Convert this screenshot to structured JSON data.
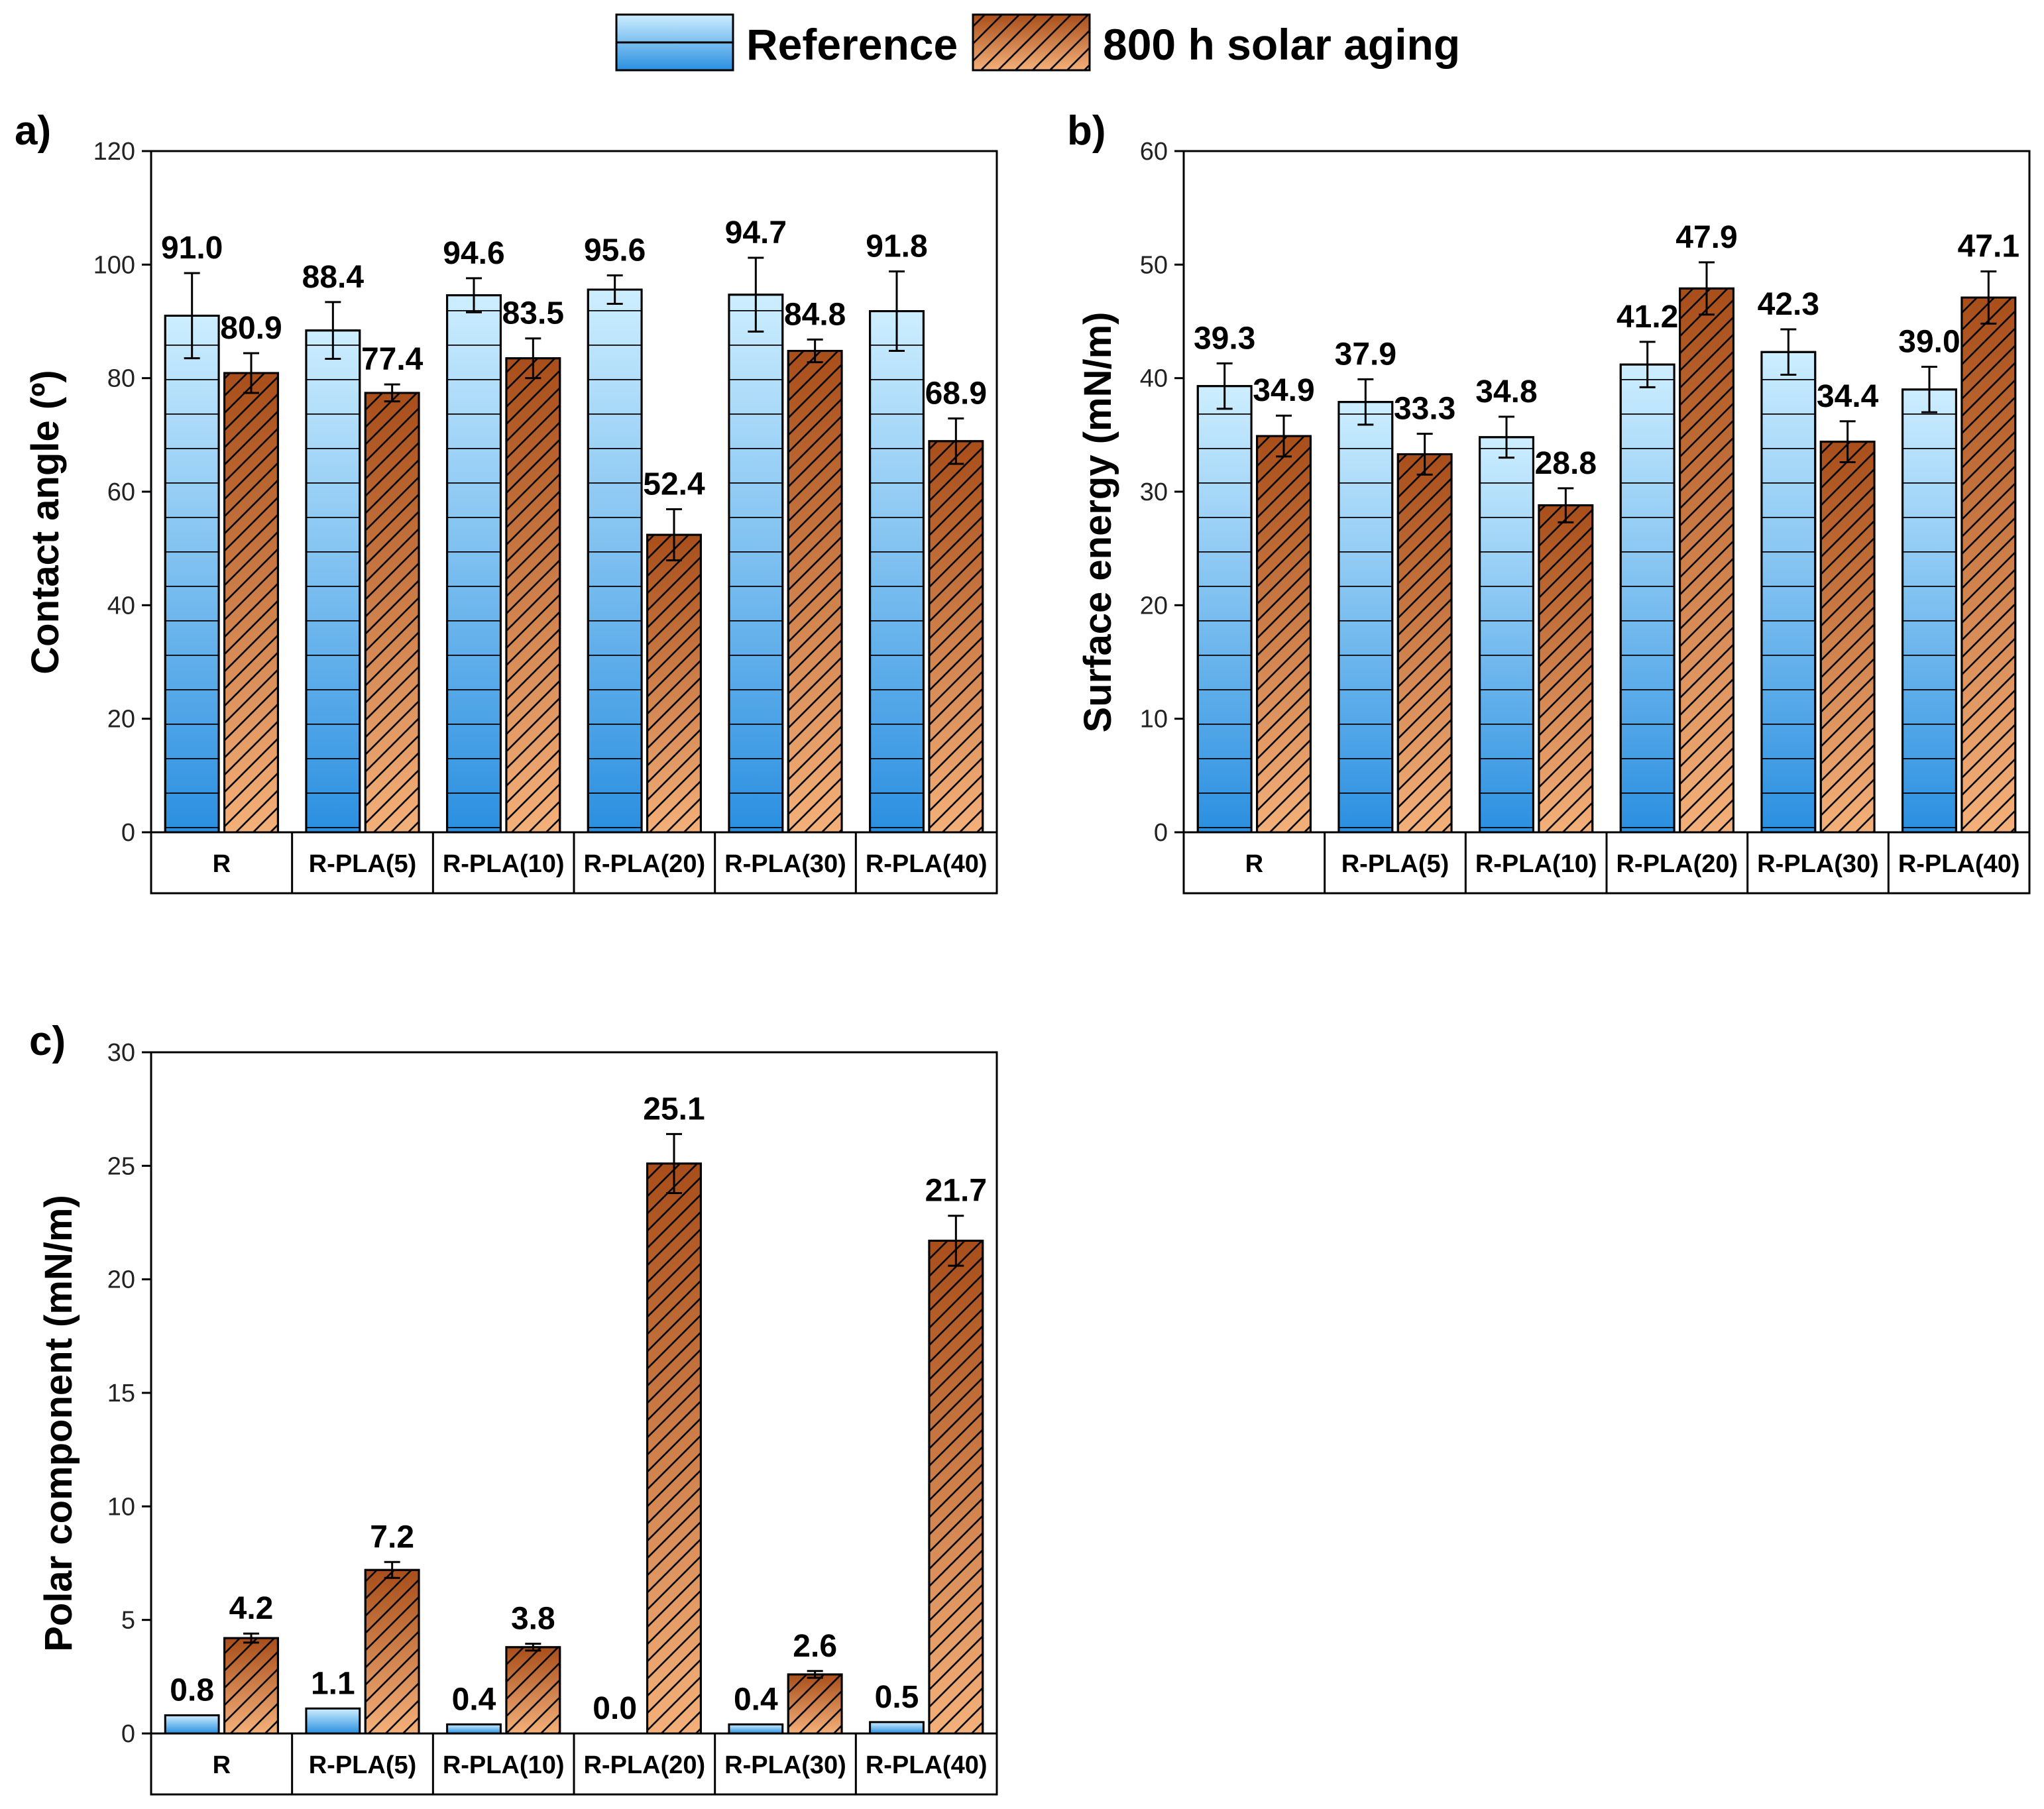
{
  "legend": [
    {
      "name": "Reference",
      "style": "blue-gradient-lines"
    },
    {
      "name": "800 h solar aging",
      "style": "orange-hatch"
    }
  ],
  "colors": {
    "reference_top": "#cdeeff",
    "reference_bottom": "#2a8fe0",
    "aged_top": "#f4b07a",
    "aged_bottom": "#a84e1a",
    "outline": "#000000"
  },
  "chart_data": [
    {
      "panel": "a)",
      "type": "bar",
      "ylabel": "Contact angle (º)",
      "ylim": [
        0,
        120
      ],
      "yticks": [
        0,
        20,
        40,
        60,
        80,
        100,
        120
      ],
      "categories": [
        "R",
        "R-PLA(5)",
        "R-PLA(10)",
        "R-PLA(20)",
        "R-PLA(30)",
        "R-PLA(40)"
      ],
      "series": [
        {
          "name": "Reference",
          "values": [
            91.0,
            88.4,
            94.6,
            95.6,
            94.7,
            91.8
          ],
          "labels": [
            "91.0",
            "88.4",
            "94.6",
            "95.6",
            "94.7",
            "91.8"
          ],
          "errors": [
            7.5,
            5.0,
            3.0,
            2.5,
            6.5,
            7.0
          ]
        },
        {
          "name": "800 h solar aging",
          "values": [
            80.9,
            77.4,
            83.5,
            52.4,
            84.8,
            68.9
          ],
          "labels": [
            "80.9",
            "77.4",
            "83.5",
            "52.4",
            "84.8",
            "68.9"
          ],
          "errors": [
            3.5,
            1.5,
            3.5,
            4.5,
            2.0,
            4.0
          ]
        }
      ]
    },
    {
      "panel": "b)",
      "type": "bar",
      "ylabel": "Surface energy (mN/m)",
      "ylim": [
        0,
        60
      ],
      "yticks": [
        0,
        10,
        20,
        30,
        40,
        50,
        60
      ],
      "categories": [
        "R",
        "R-PLA(5)",
        "R-PLA(10)",
        "R-PLA(20)",
        "R-PLA(30)",
        "R-PLA(40)"
      ],
      "series": [
        {
          "name": "Reference",
          "values": [
            39.3,
            37.9,
            34.8,
            41.2,
            42.3,
            39.0
          ],
          "labels": [
            "39.3",
            "37.9",
            "34.8",
            "41.2",
            "42.3",
            "39.0"
          ],
          "errors": [
            2.0,
            2.0,
            1.8,
            2.0,
            2.0,
            2.0
          ]
        },
        {
          "name": "800 h solar aging",
          "values": [
            34.9,
            33.3,
            28.8,
            47.9,
            34.4,
            47.1
          ],
          "labels": [
            "34.9",
            "33.3",
            "28.8",
            "47.9",
            "34.4",
            "47.1"
          ],
          "errors": [
            1.8,
            1.8,
            1.5,
            2.3,
            1.8,
            2.3
          ]
        }
      ]
    },
    {
      "panel": "c)",
      "type": "bar",
      "ylabel": "Polar component (mN/m)",
      "ylim": [
        0,
        30
      ],
      "yticks": [
        0,
        5,
        10,
        15,
        20,
        25,
        30
      ],
      "categories": [
        "R",
        "R-PLA(5)",
        "R-PLA(10)",
        "R-PLA(20)",
        "R-PLA(30)",
        "R-PLA(40)"
      ],
      "series": [
        {
          "name": "Reference",
          "values": [
            0.8,
            1.1,
            0.4,
            0.0,
            0.4,
            0.5
          ],
          "labels": [
            "0.8",
            "1.1",
            "0.4",
            "0.0",
            "0.4",
            "0.5"
          ],
          "errors": [
            0,
            0,
            0,
            0,
            0,
            0
          ]
        },
        {
          "name": "800 h solar aging",
          "values": [
            4.2,
            7.2,
            3.8,
            25.1,
            2.6,
            21.7
          ],
          "labels": [
            "4.2",
            "7.2",
            "3.8",
            "25.1",
            "2.6",
            "21.7"
          ],
          "errors": [
            0.2,
            0.35,
            0.15,
            1.3,
            0.15,
            1.1
          ]
        }
      ]
    }
  ]
}
